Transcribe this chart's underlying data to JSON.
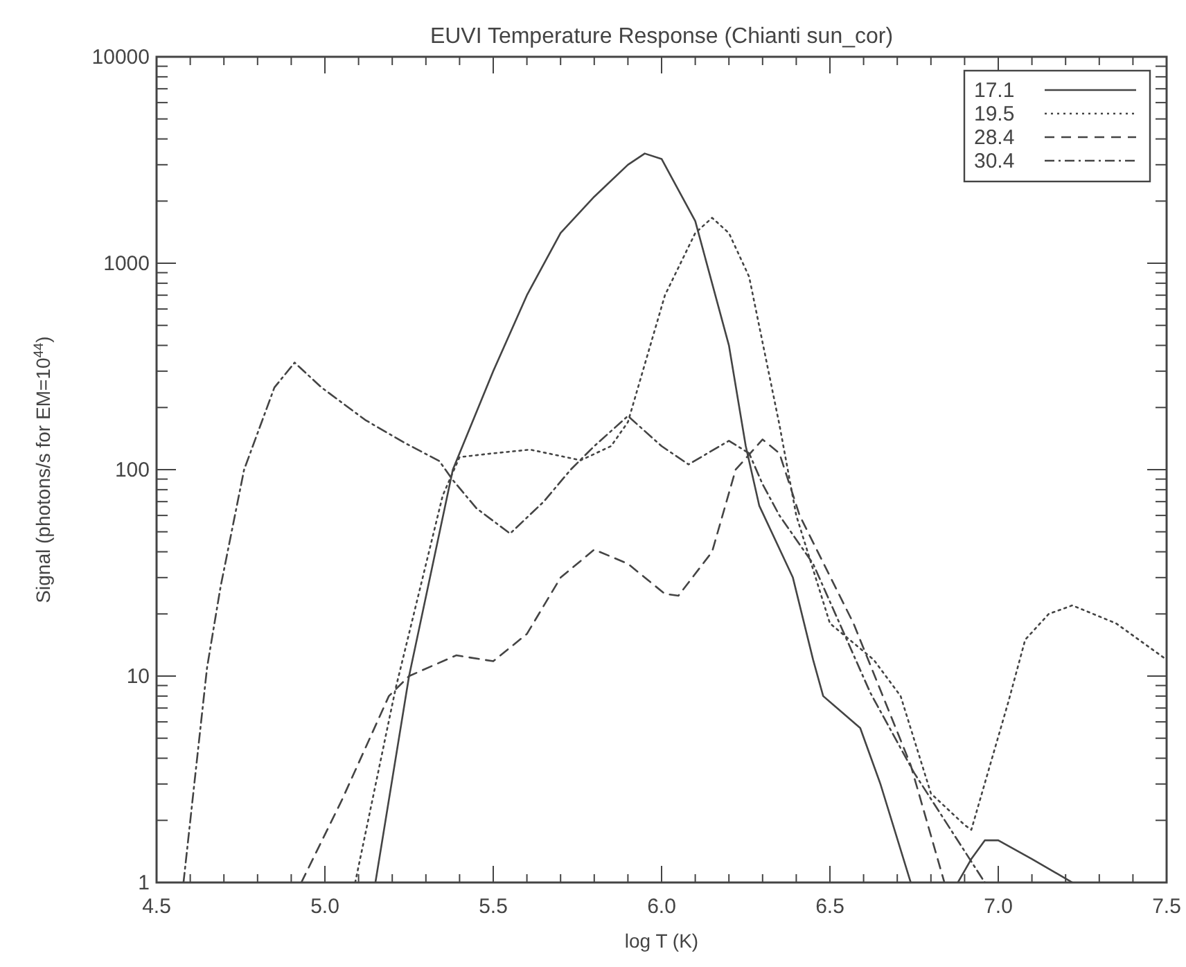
{
  "chart_data": {
    "type": "line",
    "title": "EUVI Temperature Response (Chianti sun_cor)",
    "xlabel": "log T (K)",
    "ylabel": "Signal (photons/s for EM=10$^{44}$)",
    "log": "y",
    "grid": false,
    "legend": "top right",
    "xlim": [
      4.5,
      7.5
    ],
    "xticks": [
      {
        "value": 4.5,
        "label": "4.5"
      },
      {
        "value": 4.6,
        "label": null
      },
      {
        "value": 4.7,
        "label": null
      },
      {
        "value": 4.8,
        "label": null
      },
      {
        "value": 4.9,
        "label": null
      },
      {
        "value": 5.0,
        "label": "5.0"
      },
      {
        "value": 5.1,
        "label": null
      },
      {
        "value": 5.2,
        "label": null
      },
      {
        "value": 5.3,
        "label": null
      },
      {
        "value": 5.4,
        "label": null
      },
      {
        "value": 5.5,
        "label": "5.5"
      },
      {
        "value": 5.6,
        "label": null
      },
      {
        "value": 5.7,
        "label": null
      },
      {
        "value": 5.8,
        "label": null
      },
      {
        "value": 5.9,
        "label": null
      },
      {
        "value": 6.0,
        "label": "6.0"
      },
      {
        "value": 6.1,
        "label": null
      },
      {
        "value": 6.2,
        "label": null
      },
      {
        "value": 6.3,
        "label": null
      },
      {
        "value": 6.4,
        "label": null
      },
      {
        "value": 6.5,
        "label": "6.5"
      },
      {
        "value": 6.6,
        "label": null
      },
      {
        "value": 6.7,
        "label": null
      },
      {
        "value": 6.8,
        "label": null
      },
      {
        "value": 6.9,
        "label": null
      },
      {
        "value": 7.0,
        "label": "7.0"
      },
      {
        "value": 7.1,
        "label": null
      },
      {
        "value": 7.2,
        "label": null
      },
      {
        "value": 7.3,
        "label": null
      },
      {
        "value": 7.4,
        "label": null
      },
      {
        "value": 7.5,
        "label": "7.5"
      }
    ],
    "ylim": [
      1,
      10000
    ],
    "yticks": [
      1,
      {
        "value": 2,
        "label": null
      },
      {
        "value": 3,
        "label": null
      },
      {
        "value": 4,
        "label": null
      },
      {
        "value": 5,
        "label": null
      },
      {
        "value": 6,
        "label": null
      },
      {
        "value": 7,
        "label": null
      },
      {
        "value": 8,
        "label": null
      },
      {
        "value": 9,
        "label": null
      },
      10,
      {
        "value": 20,
        "label": null
      },
      {
        "value": 30,
        "label": null
      },
      {
        "value": 40,
        "label": null
      },
      {
        "value": 50,
        "label": null
      },
      {
        "value": 60,
        "label": null
      },
      {
        "value": 70,
        "label": null
      },
      {
        "value": 80,
        "label": null
      },
      {
        "value": 90,
        "label": null
      },
      100,
      {
        "value": 200,
        "label": null
      },
      {
        "value": 300,
        "label": null
      },
      {
        "value": 400,
        "label": null
      },
      {
        "value": 500,
        "label": null
      },
      {
        "value": 600,
        "label": null
      },
      {
        "value": 700,
        "label": null
      },
      {
        "value": 800,
        "label": null
      },
      {
        "value": 900,
        "label": null
      },
      1000,
      {
        "value": 2000,
        "label": null
      },
      {
        "value": 3000,
        "label": null
      },
      {
        "value": 4000,
        "label": null
      },
      {
        "value": 5000,
        "label": null
      },
      {
        "value": 6000,
        "label": null
      },
      {
        "value": 7000,
        "label": null
      },
      {
        "value": 8000,
        "label": null
      },
      {
        "value": 9000,
        "label": null
      },
      10000
    ],
    "series": [
      {
        "name": "17.1",
        "color": "#444444",
        "line_style": "solid",
        "x": [
          5.15,
          5.25,
          5.38,
          5.5,
          5.6,
          5.7,
          5.8,
          5.9,
          5.95,
          6.0,
          6.1,
          6.2,
          6.25,
          6.29,
          6.39,
          6.45,
          6.48,
          6.59,
          6.65,
          6.74
        ],
        "values": [
          1,
          10,
          100,
          300,
          700,
          1400,
          2100,
          3000,
          3400,
          3200,
          1600,
          400,
          130,
          67,
          30,
          12,
          8,
          5.6,
          3,
          1
        ]
      },
      {
        "color": "#444444",
        "line_style": "solid",
        "x": [
          6.88,
          6.92,
          6.96,
          7.0,
          7.1,
          7.22
        ],
        "values": [
          1,
          1.3,
          1.6,
          1.6,
          1.3,
          1
        ]
      },
      {
        "name": "19.5",
        "color": "#444444",
        "line_style": "dotted",
        "x": [
          5.09,
          5.21,
          5.35,
          5.4,
          5.5,
          5.61,
          5.76,
          5.85,
          5.9,
          6.01,
          6.1,
          6.15,
          6.2,
          6.26,
          6.35,
          6.4,
          6.5,
          6.63,
          6.71,
          6.8,
          6.9,
          6.92,
          7.03,
          7.08,
          7.15,
          7.22,
          7.35,
          7.5
        ],
        "values": [
          1,
          8.7,
          75,
          115,
          120,
          125,
          111,
          130,
          170,
          700,
          1400,
          1660,
          1400,
          860,
          165,
          60,
          18,
          12,
          8,
          2.7,
          1.9,
          1.8,
          7.5,
          15,
          20,
          22,
          18,
          12
        ]
      },
      {
        "name": "28.4",
        "color": "#444444",
        "line_style": "dashed",
        "x": [
          4.93,
          5.05,
          5.19,
          5.25,
          5.39,
          5.5,
          5.6,
          5.7,
          5.8,
          5.9,
          6.01,
          6.05,
          6.15,
          6.22,
          6.3,
          6.35,
          6.41,
          6.57,
          6.74,
          6.84
        ],
        "values": [
          1,
          2.5,
          8,
          10,
          12.6,
          11.8,
          16,
          30,
          41,
          35,
          25,
          24.5,
          40,
          100,
          140,
          120,
          60,
          18,
          3.7,
          1
        ]
      },
      {
        "name": "30.4",
        "color": "#444444",
        "line_style": "dashdot",
        "x": [
          4.58,
          4.65,
          4.69,
          4.76,
          4.85,
          4.91,
          4.99,
          5.12,
          5.24,
          5.34,
          5.38,
          5.45,
          5.55,
          5.65,
          5.73,
          5.8,
          5.9,
          6.0,
          6.08,
          6.2,
          6.26,
          6.3,
          6.35,
          6.45,
          6.62,
          6.75,
          6.96
        ],
        "values": [
          1,
          11,
          27,
          100,
          250,
          330,
          250,
          174,
          134,
          110,
          89,
          65,
          49,
          70,
          100,
          130,
          182,
          130,
          106,
          138,
          120,
          85,
          60,
          35,
          8.3,
          3.4,
          1
        ]
      }
    ]
  }
}
